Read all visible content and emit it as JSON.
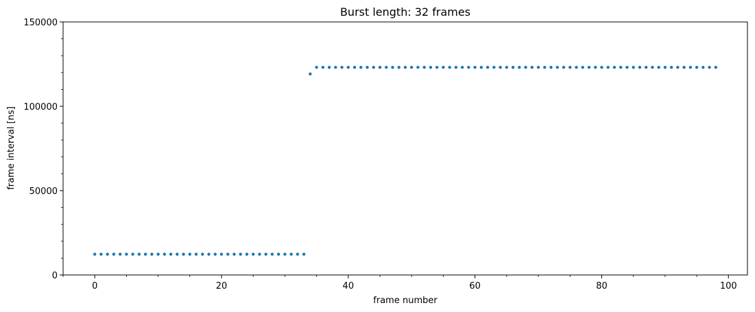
{
  "chart_data": {
    "type": "scatter",
    "title": "Burst length: 32 frames",
    "xlabel": "frame number",
    "ylabel": "frame interval [ns]",
    "xlim": [
      -5,
      103
    ],
    "ylim": [
      0,
      150000
    ],
    "xticks": [
      0,
      20,
      40,
      60,
      80,
      100
    ],
    "yticks": [
      0,
      50000,
      100000,
      150000
    ],
    "grid": false,
    "marker_color": "#1f77b4",
    "x": [
      0,
      1,
      2,
      3,
      4,
      5,
      6,
      7,
      8,
      9,
      10,
      11,
      12,
      13,
      14,
      15,
      16,
      17,
      18,
      19,
      20,
      21,
      22,
      23,
      24,
      25,
      26,
      27,
      28,
      29,
      30,
      31,
      32,
      33,
      34,
      35,
      36,
      37,
      38,
      39,
      40,
      41,
      42,
      43,
      44,
      45,
      46,
      47,
      48,
      49,
      50,
      51,
      52,
      53,
      54,
      55,
      56,
      57,
      58,
      59,
      60,
      61,
      62,
      63,
      64,
      65,
      66,
      67,
      68,
      69,
      70,
      71,
      72,
      73,
      74,
      75,
      76,
      77,
      78,
      79,
      80,
      81,
      82,
      83,
      84,
      85,
      86,
      87,
      88,
      89,
      90,
      91,
      92,
      93,
      94,
      95,
      96,
      97,
      98
    ],
    "y": [
      12300,
      12300,
      12300,
      12300,
      12300,
      12300,
      12300,
      12300,
      12300,
      12300,
      12300,
      12300,
      12300,
      12300,
      12300,
      12300,
      12300,
      12300,
      12300,
      12300,
      12300,
      12300,
      12300,
      12300,
      12300,
      12300,
      12300,
      12300,
      12300,
      12300,
      12300,
      12300,
      12300,
      12300,
      119200,
      123100,
      123100,
      123100,
      123100,
      123100,
      123100,
      123100,
      123100,
      123100,
      123100,
      123100,
      123100,
      123100,
      123100,
      123100,
      123100,
      123100,
      123100,
      123100,
      123100,
      123100,
      123100,
      123100,
      123100,
      123100,
      123100,
      123100,
      123100,
      123100,
      123100,
      123100,
      123100,
      123100,
      123100,
      123100,
      123100,
      123100,
      123100,
      123100,
      123100,
      123100,
      123100,
      123100,
      123100,
      123100,
      123100,
      123100,
      123100,
      123100,
      123100,
      123100,
      123100,
      123100,
      123100,
      123100,
      123100,
      123100,
      123100,
      123100,
      123100,
      123100,
      123100,
      123100,
      123100
    ]
  }
}
